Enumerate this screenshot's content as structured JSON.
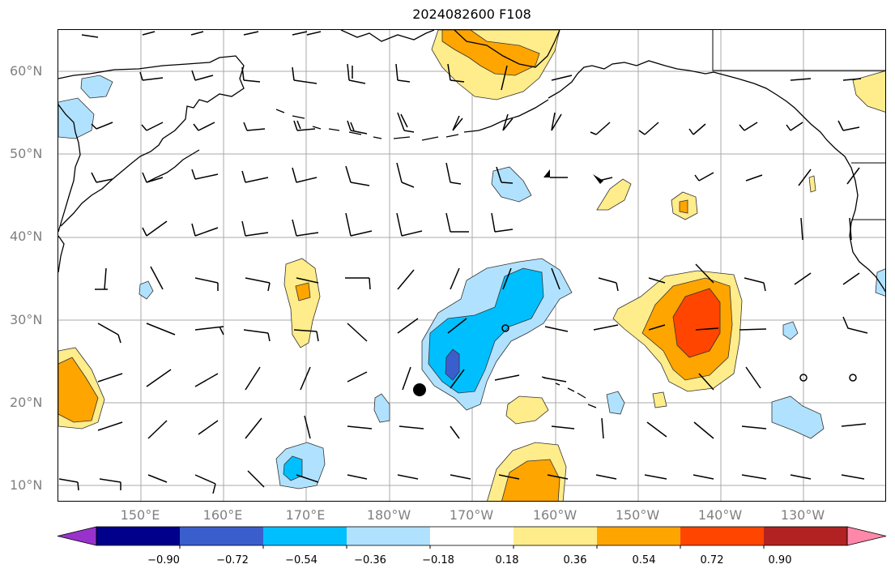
{
  "title": "2024082600 F108",
  "lat_labels": [
    "60°N",
    "50°N",
    "40°N",
    "30°N",
    "20°N",
    "10°N"
  ],
  "lon_labels": [
    "150°E",
    "160°E",
    "170°E",
    "180°W",
    "170°W",
    "160°W",
    "150°W",
    "140°W",
    "130°W"
  ],
  "colorbar": {
    "ticks": [
      "−0.90",
      "−0.72",
      "−0.54",
      "−0.36",
      "−0.18",
      "0.18",
      "0.36",
      "0.54",
      "0.72",
      "0.90"
    ],
    "colors": [
      "#9932cc",
      "#00008b",
      "#3a5fcd",
      "#00bfff",
      "#b0e2ff",
      "#ffffff",
      "#ffec8b",
      "#ffa500",
      "#ff4500",
      "#b22222",
      "#ff88aa"
    ]
  },
  "colors": {
    "land_line": "#000000",
    "grid": "#a9a9a9",
    "contour_line": "#333333"
  }
}
